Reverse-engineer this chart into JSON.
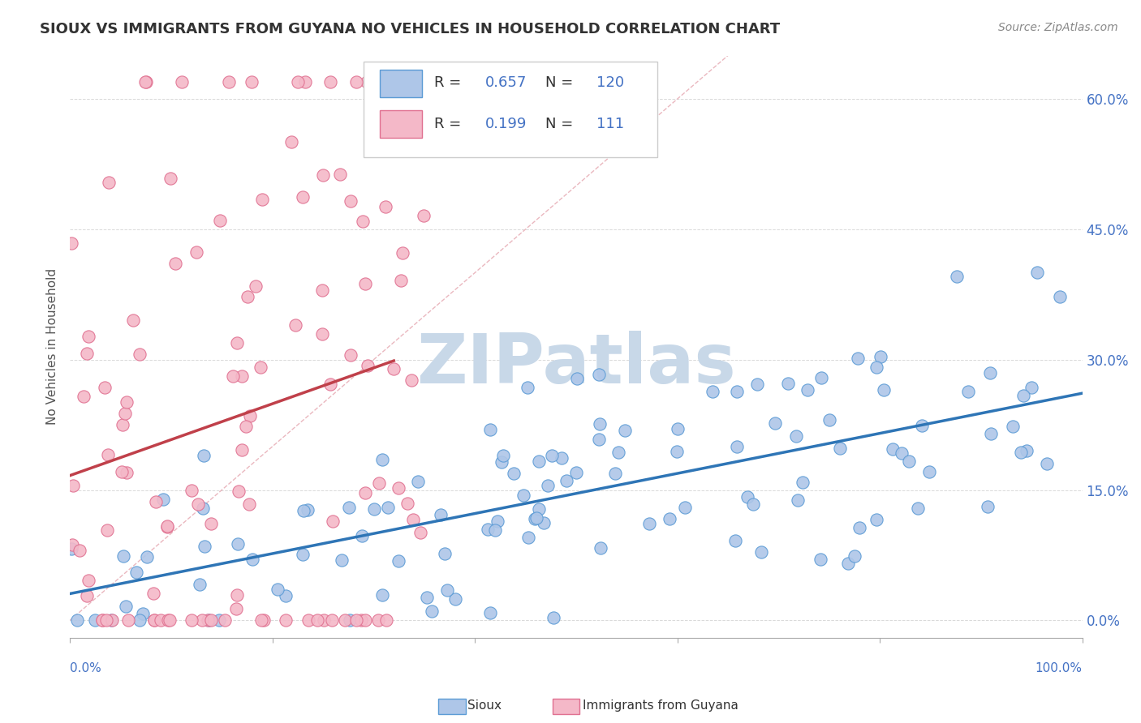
{
  "title": "SIOUX VS IMMIGRANTS FROM GUYANA NO VEHICLES IN HOUSEHOLD CORRELATION CHART",
  "source": "Source: ZipAtlas.com",
  "ylabel": "No Vehicles in Household",
  "ytick_vals": [
    0.0,
    0.15,
    0.3,
    0.45,
    0.6
  ],
  "ytick_labels": [
    "0.0%",
    "15.0%",
    "30.0%",
    "45.0%",
    "60.0%"
  ],
  "xlim": [
    0.0,
    1.0
  ],
  "ylim": [
    -0.02,
    0.65
  ],
  "sioux_R": 0.657,
  "sioux_N": 120,
  "guyana_R": 0.199,
  "guyana_N": 111,
  "sioux_color": "#aec6e8",
  "sioux_edge_color": "#5b9bd5",
  "sioux_line_color": "#2e75b6",
  "guyana_color": "#f4b8c8",
  "guyana_edge_color": "#e07090",
  "guyana_line_color": "#c0404a",
  "diagonal_color": "#e8b0b8",
  "watermark_color": "#c8d8e8",
  "background_color": "#ffffff",
  "grid_color": "#d0d0d0",
  "tick_color": "#4472c4",
  "title_color": "#333333",
  "source_color": "#888888"
}
